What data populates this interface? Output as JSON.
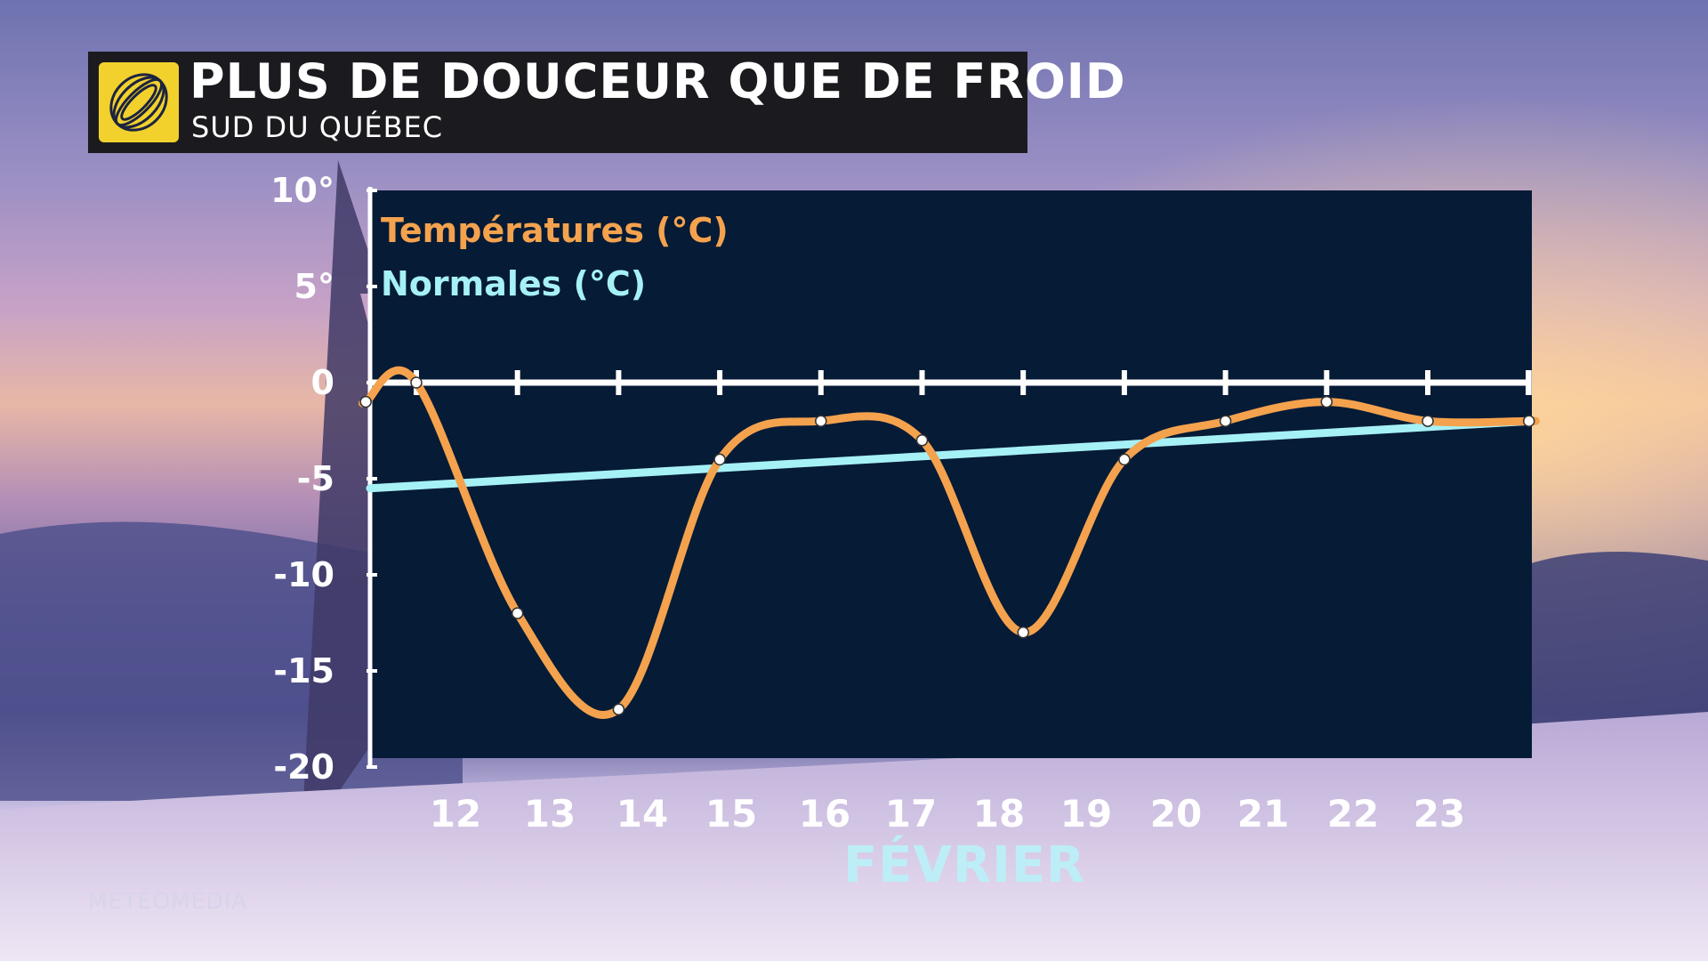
{
  "header": {
    "title": "PLUS DE DOUCEUR QUE DE FROID",
    "subtitle": "SUD DU QUÉBEC"
  },
  "brand": "MÉTÉOMÉDIA",
  "colors": {
    "temperature_line": "#f4a24e",
    "normals_line": "#a6f1f6",
    "plot_background": "#061b36",
    "logo_yellow": "#f2d12d",
    "month_label": "#bdeef7"
  },
  "chart_data": {
    "type": "line",
    "xlabel": "FÉVRIER",
    "categories": [
      "12",
      "13",
      "14",
      "15",
      "16",
      "17",
      "18",
      "19",
      "20",
      "21",
      "22",
      "23"
    ],
    "ylim": [
      -20,
      10
    ],
    "y_ticks": [
      "10°",
      "5°",
      "0",
      "-5",
      "-10",
      "-15",
      "-20"
    ],
    "y_tick_values": [
      10,
      5,
      0,
      -5,
      -10,
      -15,
      -20
    ],
    "legend_position": "top-left",
    "grid": false,
    "series": [
      {
        "name": "Températures (°C)",
        "x": [
          11.5,
          12.0,
          13.0,
          14.0,
          15.0,
          16.0,
          17.0,
          18.0,
          19.0,
          20.0,
          21.0,
          22.0,
          23.0
        ],
        "values": [
          -1,
          0,
          -12,
          -17,
          -4,
          -2,
          -3,
          -13,
          -4,
          -2,
          -1,
          -2,
          -2
        ]
      },
      {
        "name": "Normales (°C)",
        "x": [
          11.0,
          23.0
        ],
        "values": [
          -5.5,
          -2
        ]
      }
    ]
  }
}
